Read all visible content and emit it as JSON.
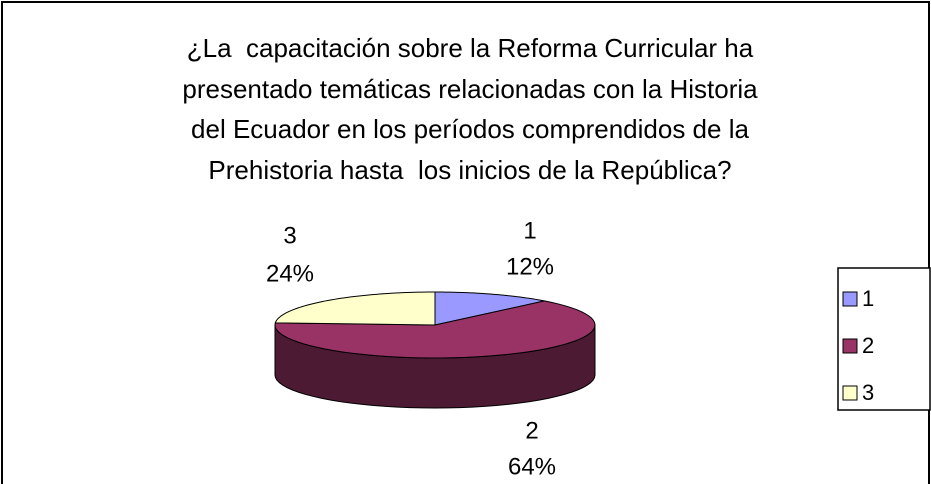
{
  "chart_data": {
    "type": "pie3d",
    "title": "¿La  capacitación sobre la Reforma Curricular ha\npresentado temáticas relacionadas con la Historia\ndel Ecuador en los períodos comprendidos de la\nPrehistoria hasta  los inicios de la República?",
    "categories": [
      "1",
      "2",
      "3"
    ],
    "values": [
      12,
      64,
      24
    ],
    "value_labels": [
      "12%",
      "64%",
      "24%"
    ],
    "colors": [
      "#9999ff",
      "#993366",
      "#ffffcc"
    ],
    "legend": "right"
  }
}
